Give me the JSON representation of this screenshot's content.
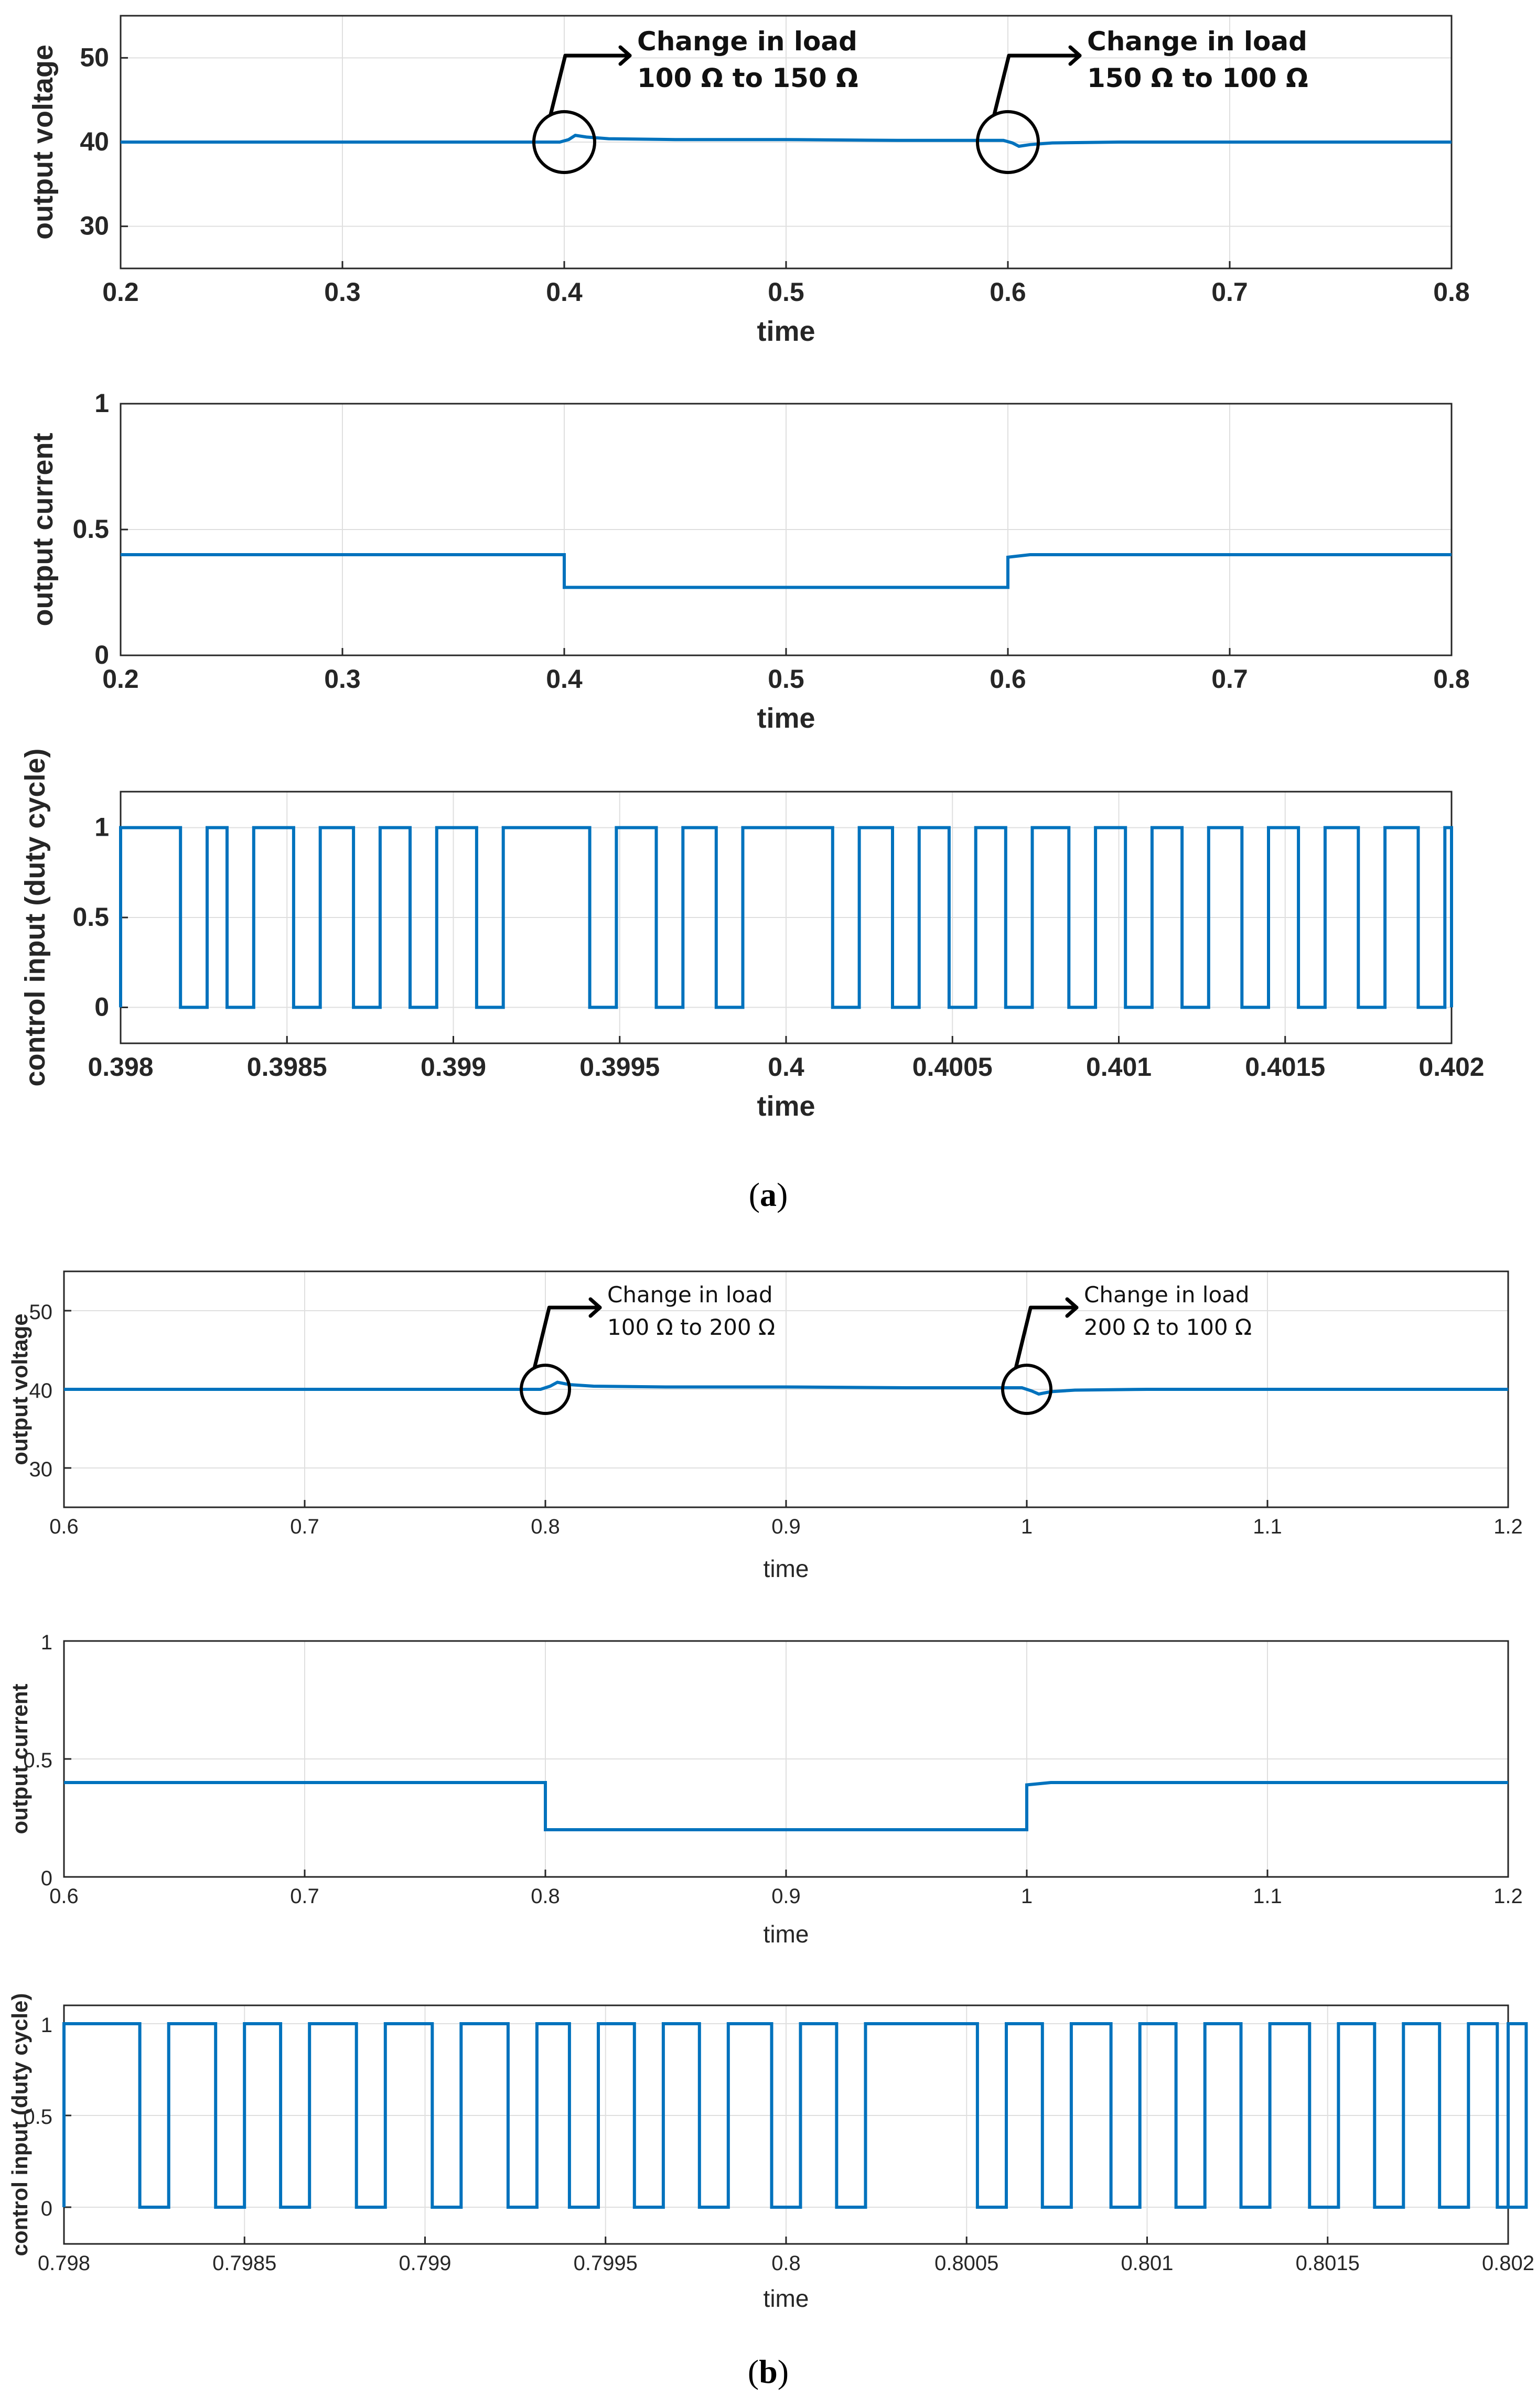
{
  "chart_data": [
    {
      "panel": "a",
      "type": "line",
      "xlabel": "time",
      "ylabel": "output voltage",
      "xlim": [
        0.2,
        0.8
      ],
      "ylim": [
        25,
        55
      ],
      "xticks": [
        "0.2",
        "0.3",
        "0.4",
        "0.5",
        "0.6",
        "0.7",
        "0.8"
      ],
      "yticks": [
        "30",
        "40",
        "50"
      ],
      "ytick_values": [
        30,
        40,
        50
      ],
      "series": [
        {
          "name": "output voltage",
          "color": "#0072bd",
          "x": [
            0.2,
            0.398,
            0.402,
            0.405,
            0.41,
            0.42,
            0.45,
            0.5,
            0.55,
            0.598,
            0.602,
            0.605,
            0.61,
            0.62,
            0.65,
            0.7,
            0.8
          ],
          "y": [
            40.0,
            40.0,
            40.3,
            40.8,
            40.6,
            40.4,
            40.3,
            40.3,
            40.2,
            40.2,
            39.9,
            39.5,
            39.7,
            39.9,
            40.0,
            40.0,
            40.0
          ]
        }
      ],
      "annotations": [
        {
          "line1": "Change in load",
          "line2": "100 Ω to 150 Ω",
          "x": 0.4,
          "y": 40
        },
        {
          "line1": "Change in load",
          "line2": "150 Ω to 100 Ω",
          "x": 0.6,
          "y": 40
        }
      ]
    },
    {
      "panel": "a",
      "type": "line",
      "xlabel": "time",
      "ylabel": "output current",
      "xlim": [
        0.2,
        0.8
      ],
      "ylim": [
        0,
        1
      ],
      "xticks": [
        "0.2",
        "0.3",
        "0.4",
        "0.5",
        "0.6",
        "0.7",
        "0.8"
      ],
      "yticks": [
        "0",
        "0.5",
        "1"
      ],
      "ytick_values": [
        0,
        0.5,
        1
      ],
      "series": [
        {
          "name": "output current",
          "color": "#0072bd",
          "x": [
            0.2,
            0.4,
            0.4,
            0.6,
            0.6,
            0.61,
            0.8
          ],
          "y": [
            0.4,
            0.4,
            0.27,
            0.27,
            0.39,
            0.4,
            0.4
          ]
        }
      ]
    },
    {
      "panel": "a",
      "type": "line",
      "xlabel": "time",
      "ylabel": "control input (duty cycle)",
      "xlim": [
        0.398,
        0.402
      ],
      "ylim": [
        -0.2,
        1.2
      ],
      "xticks": [
        "0.398",
        "0.3985",
        "0.399",
        "0.3995",
        "0.4",
        "0.4005",
        "0.401",
        "0.4015",
        "0.402"
      ],
      "yticks": [
        "0",
        "0.5",
        "1"
      ],
      "ytick_values": [
        0,
        0.5,
        1
      ],
      "series": [
        {
          "name": "duty cycle",
          "color": "#0072bd",
          "low_pulse_width": 8e-05,
          "edges": [
            0.39818,
            0.39832,
            0.39852,
            0.3987,
            0.39887,
            0.39907,
            0.39941,
            0.39961,
            0.39979,
            0.40014,
            0.40032,
            0.40049,
            0.40066,
            0.40085,
            0.40102,
            0.40119,
            0.40137,
            0.40154,
            0.40172,
            0.4019
          ]
        }
      ]
    },
    {
      "panel": "b",
      "type": "line",
      "xlabel": "time",
      "ylabel": "output voltage",
      "xlim": [
        0.6,
        1.2
      ],
      "ylim": [
        25,
        55
      ],
      "xticks": [
        "0.6",
        "0.7",
        "0.8",
        "0.9",
        "1",
        "1.1",
        "1.2"
      ],
      "yticks": [
        "30",
        "40",
        "50"
      ],
      "ytick_values": [
        30,
        40,
        50
      ],
      "series": [
        {
          "name": "output voltage",
          "color": "#0072bd",
          "x": [
            0.6,
            0.798,
            0.802,
            0.805,
            0.81,
            0.82,
            0.85,
            0.9,
            0.95,
            0.998,
            1.002,
            1.005,
            1.01,
            1.02,
            1.05,
            1.1,
            1.2
          ],
          "y": [
            40.0,
            40.0,
            40.4,
            40.9,
            40.6,
            40.4,
            40.3,
            40.3,
            40.2,
            40.2,
            39.8,
            39.4,
            39.7,
            39.9,
            40.0,
            40.0,
            40.0
          ]
        }
      ],
      "annotations": [
        {
          "line1": "Change in load",
          "line2": "100 Ω to 200 Ω",
          "x": 0.8,
          "y": 40
        },
        {
          "line1": "Change in load",
          "line2": "200 Ω to 100 Ω",
          "x": 1.0,
          "y": 40
        }
      ]
    },
    {
      "panel": "b",
      "type": "line",
      "xlabel": "time",
      "ylabel": "output current",
      "xlim": [
        0.6,
        1.2
      ],
      "ylim": [
        0,
        1
      ],
      "xticks": [
        "0.6",
        "0.7",
        "0.8",
        "0.9",
        "1",
        "1.1",
        "1.2"
      ],
      "yticks": [
        "0",
        "0.5",
        "1"
      ],
      "ytick_values": [
        0,
        0.5,
        1
      ],
      "series": [
        {
          "name": "output current",
          "color": "#0072bd",
          "x": [
            0.6,
            0.8,
            0.8,
            1.0,
            1.0,
            1.01,
            1.2
          ],
          "y": [
            0.4,
            0.4,
            0.2,
            0.2,
            0.39,
            0.4,
            0.4
          ]
        }
      ]
    },
    {
      "panel": "b",
      "type": "line",
      "xlabel": "time",
      "ylabel": "control input (duty cycle)",
      "xlim": [
        0.798,
        0.802
      ],
      "ylim": [
        -0.2,
        1.1
      ],
      "xticks": [
        "0.798",
        "0.7985",
        "0.799",
        "0.7995",
        "0.8",
        "0.8005",
        "0.801",
        "0.8015",
        "0.802"
      ],
      "yticks": [
        "0",
        "0.5",
        "1"
      ],
      "ytick_values": [
        0,
        0.5,
        1
      ],
      "series": [
        {
          "name": "duty cycle",
          "color": "#0072bd",
          "low_pulse_width": 8e-05,
          "edges": [
            0.79821,
            0.79842,
            0.7986,
            0.79881,
            0.79902,
            0.79923,
            0.7994,
            0.79958,
            0.79976,
            0.79996,
            0.80014,
            0.80053,
            0.80071,
            0.8009,
            0.80108,
            0.80126,
            0.80145,
            0.80163,
            0.80181,
            0.80197
          ]
        }
      ]
    }
  ],
  "captions": {
    "a": "a",
    "b": "b"
  }
}
